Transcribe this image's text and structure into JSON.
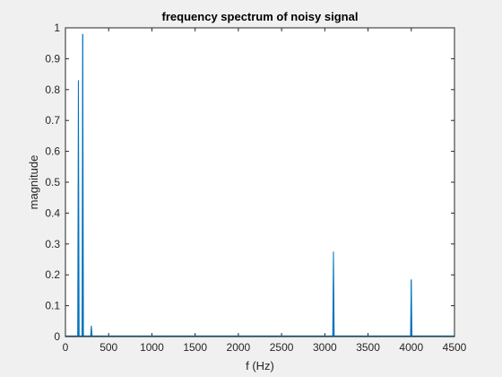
{
  "chart_data": {
    "type": "line",
    "title": "frequency spectrum of noisy signal",
    "xlabel": "f (Hz)",
    "ylabel": "magnitude",
    "xlim": [
      0,
      4500
    ],
    "ylim": [
      0,
      1
    ],
    "xticks": [
      0,
      500,
      1000,
      1500,
      2000,
      2500,
      3000,
      3500,
      4000,
      4500
    ],
    "yticks": [
      0,
      0.1,
      0.2,
      0.3,
      0.4,
      0.5,
      0.6,
      0.7,
      0.8,
      0.9,
      1
    ],
    "grid": false,
    "series": [
      {
        "color": "#0072BD",
        "peaks": [
          {
            "f": 150,
            "magnitude": 0.83
          },
          {
            "f": 200,
            "magnitude": 0.98
          },
          {
            "f": 300,
            "magnitude": 0.035
          },
          {
            "f": 3100,
            "magnitude": 0.275
          },
          {
            "f": 4000,
            "magnitude": 0.185
          }
        ],
        "noise_floor": 0.002
      }
    ]
  }
}
